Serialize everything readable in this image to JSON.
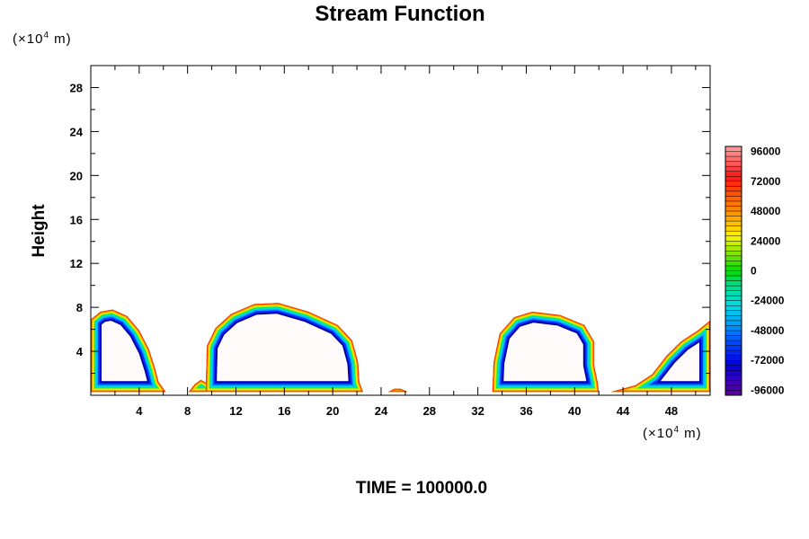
{
  "chart_data": {
    "type": "heatmap",
    "title": "Stream Function",
    "ylabel": "Height",
    "y_unit_prefix": "(×10",
    "y_unit_exp": "4",
    "y_unit_suffix": " m)",
    "x_unit_prefix": "(×10",
    "x_unit_exp": "4",
    "x_unit_suffix": " m)",
    "xlim": [
      0,
      51.2
    ],
    "ylim": [
      0,
      30
    ],
    "x_ticks": [
      4,
      8,
      12,
      16,
      20,
      24,
      28,
      32,
      36,
      40,
      44,
      48
    ],
    "y_ticks": [
      4,
      8,
      12,
      16,
      20,
      24,
      28
    ],
    "time_label": "TIME = 100000.0",
    "colorbar": {
      "min": -100000,
      "max": 100000,
      "step": 4000,
      "tick_values": [
        96000,
        72000,
        48000,
        24000,
        0,
        -24000,
        -48000,
        -72000,
        -96000
      ],
      "tick_labels": [
        "96000",
        "72000",
        "48000",
        "24000",
        "0",
        "-24000",
        "-48000",
        "-72000",
        "-96000"
      ]
    },
    "ring_colors": [
      "#0000aa",
      "#0033ff",
      "#00aaff",
      "#00dddd",
      "#00ee66",
      "#aaee00",
      "#ffee00",
      "#ff9900",
      "#ff3300"
    ],
    "inner_fill_color": "#fffbfb",
    "features": [
      {
        "name": "left-edge-cell",
        "x": [
          0,
          6.2
        ],
        "top": 7.8
      },
      {
        "name": "small-bump-9",
        "x": [
          8.1,
          10
        ],
        "top": 1.4
      },
      {
        "name": "large-cell",
        "x": [
          9.5,
          22.5
        ],
        "top": 8.5
      },
      {
        "name": "small-bump-25",
        "x": [
          24.6,
          26.2
        ],
        "top": 0.6
      },
      {
        "name": "middle-right-cell",
        "x": [
          33.2,
          42
        ],
        "top": 7.6
      },
      {
        "name": "right-edge-cell",
        "x": [
          43,
          51.2
        ],
        "top": 6.8
      }
    ]
  }
}
